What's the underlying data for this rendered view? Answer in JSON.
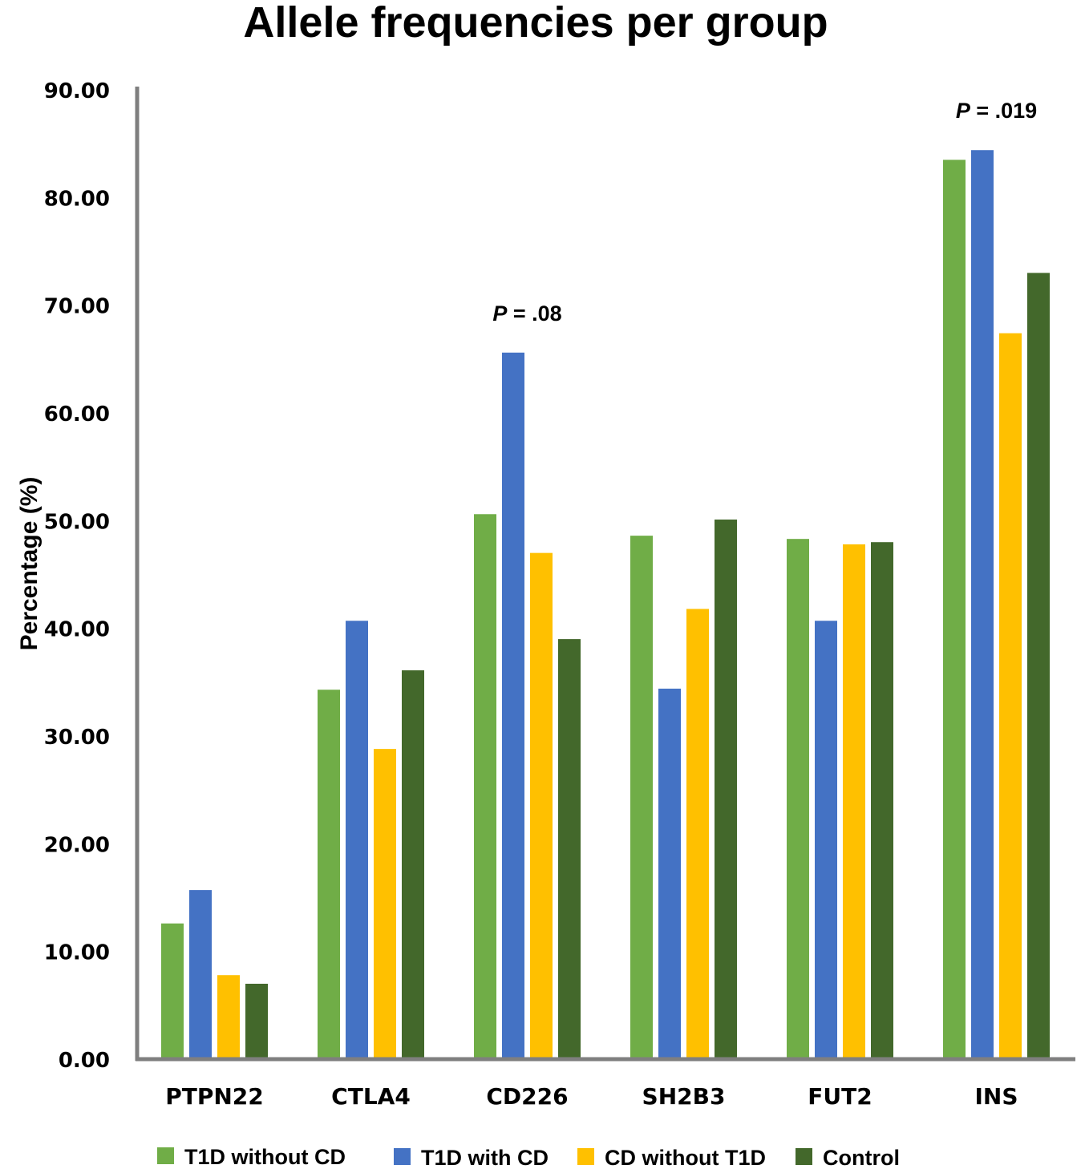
{
  "chart_data": {
    "type": "bar",
    "title": "Allele frequencies per group",
    "xlabel": "",
    "ylabel": "Percentage (%)",
    "ylim": [
      0,
      90
    ],
    "yticks": [
      "0.00",
      "10.00",
      "20.00",
      "30.00",
      "40.00",
      "50.00",
      "60.00",
      "70.00",
      "80.00",
      "90.00"
    ],
    "categories": [
      "PTPN22",
      "CTLA4",
      "CD226",
      "SH2B3",
      "FUT2",
      "INS"
    ],
    "series": [
      {
        "name": "T1D without CD",
        "color": "#70ad47",
        "values": [
          12.6,
          34.3,
          50.6,
          48.6,
          48.3,
          83.5
        ]
      },
      {
        "name": "T1D with CD",
        "color": "#4472c4",
        "values": [
          15.7,
          40.7,
          65.6,
          34.4,
          40.7,
          84.4
        ]
      },
      {
        "name": "CD without T1D",
        "color": "#ffc000",
        "values": [
          7.8,
          28.8,
          47.0,
          41.8,
          47.8,
          67.4
        ]
      },
      {
        "name": "Control",
        "color": "#43682b",
        "values": [
          7.0,
          36.1,
          39.0,
          50.1,
          48.0,
          73.0
        ]
      }
    ],
    "annotations": [
      {
        "category": "CD226",
        "p_label": "P",
        "text": " = .08"
      },
      {
        "category": "INS",
        "p_label": "P",
        "text": " = .019"
      }
    ],
    "grid": false,
    "legend_position": "bottom"
  }
}
